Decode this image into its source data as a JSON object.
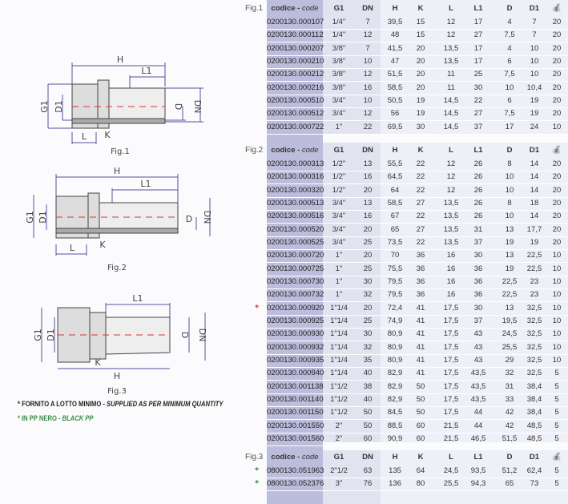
{
  "columns": [
    "codice - code",
    "G1",
    "DN",
    "H",
    "K",
    "L",
    "L1",
    "D",
    "D1",
    "bag-icon"
  ],
  "colors": {
    "code_col": "#bcbcdc",
    "mid_col": "#e2e3f1",
    "light_col": "#eff1f8",
    "red_star": "#d83a3a",
    "green_star": "#3d8a4a",
    "dim_line": "#5a4f9a"
  },
  "tables": [
    {
      "fig": "Fig.1",
      "header_code": "codice",
      "header_code_en": "code",
      "rows": [
        [
          "0200130.000107",
          "1/4\"",
          "7",
          "39,5",
          "15",
          "12",
          "17",
          "4",
          "7",
          "20"
        ],
        [
          "0200130.000112",
          "1/4\"",
          "12",
          "48",
          "15",
          "12",
          "27",
          "7,5",
          "7",
          "20"
        ],
        [
          "0200130.000207",
          "3/8\"",
          "7",
          "41,5",
          "20",
          "13,5",
          "17",
          "4",
          "10",
          "20"
        ],
        [
          "0200130.000210",
          "3/8\"",
          "10",
          "47",
          "20",
          "13,5",
          "17",
          "6",
          "10",
          "20"
        ],
        [
          "0200130.000212",
          "3/8\"",
          "12",
          "51,5",
          "20",
          "11",
          "25",
          "7,5",
          "10",
          "20"
        ],
        [
          "0200130.000216",
          "3/8\"",
          "16",
          "58,5",
          "20",
          "11",
          "30",
          "10",
          "10,4",
          "20"
        ],
        [
          "0200130.000510",
          "3/4\"",
          "10",
          "50,5",
          "19",
          "14,5",
          "22",
          "6",
          "19",
          "20"
        ],
        [
          "0200130.000512",
          "3/4\"",
          "12",
          "56",
          "19",
          "14,5",
          "27",
          "7,5",
          "19",
          "20"
        ],
        [
          "0200130.000722",
          "1\"",
          "22",
          "69,5",
          "30",
          "14,5",
          "37",
          "17",
          "24",
          "10"
        ]
      ]
    },
    {
      "fig": "Fig.2",
      "header_code": "codice",
      "header_code_en": "code",
      "rows": [
        [
          "0200130.000313",
          "1/2\"",
          "13",
          "55,5",
          "22",
          "12",
          "26",
          "8",
          "14",
          "20"
        ],
        [
          "0200130.000316",
          "1/2\"",
          "16",
          "64,5",
          "22",
          "12",
          "26",
          "10",
          "14",
          "20"
        ],
        [
          "0200130.000320",
          "1/2\"",
          "20",
          "64",
          "22",
          "12",
          "26",
          "10",
          "14",
          "20"
        ],
        [
          "0200130.000513",
          "3/4\"",
          "13",
          "58,5",
          "27",
          "13,5",
          "26",
          "8",
          "18",
          "20"
        ],
        [
          "0200130.000516",
          "3/4\"",
          "16",
          "67",
          "22",
          "13,5",
          "26",
          "10",
          "14",
          "20"
        ],
        [
          "0200130.000520",
          "3/4\"",
          "20",
          "65",
          "27",
          "13,5",
          "31",
          "13",
          "17,7",
          "20"
        ],
        [
          "0200130.000525",
          "3/4\"",
          "25",
          "73,5",
          "22",
          "13,5",
          "37",
          "19",
          "19",
          "20"
        ],
        [
          "0200130.000720",
          "1\"",
          "20",
          "70",
          "36",
          "16",
          "30",
          "13",
          "22,5",
          "10"
        ],
        [
          "0200130.000725",
          "1\"",
          "25",
          "75,5",
          "36",
          "16",
          "36",
          "19",
          "22,5",
          "10"
        ],
        [
          "0200130.000730",
          "1\"",
          "30",
          "79,5",
          "36",
          "16",
          "36",
          "22,5",
          "23",
          "10"
        ],
        [
          "0200130.000732",
          "1\"",
          "32",
          "79,5",
          "36",
          "16",
          "36",
          "22,5",
          "23",
          "10"
        ],
        [
          "0200130.000920",
          "1\"1/4",
          "20",
          "72,4",
          "41",
          "17,5",
          "30",
          "13",
          "32,5",
          "10",
          "red"
        ],
        [
          "0200130.000925",
          "1\"1/4",
          "25",
          "74,9",
          "41",
          "17,5",
          "37",
          "19,5",
          "32,5",
          "10"
        ],
        [
          "0200130.000930",
          "1\"1/4",
          "30",
          "80,9",
          "41",
          "17,5",
          "43",
          "24,5",
          "32,5",
          "10"
        ],
        [
          "0200130.000932",
          "1\"1/4",
          "32",
          "80,9",
          "41",
          "17,5",
          "43",
          "25,5",
          "32,5",
          "10"
        ],
        [
          "0200130.000935",
          "1\"1/4",
          "35",
          "80,9",
          "41",
          "17,5",
          "43",
          "29",
          "32,5",
          "10"
        ],
        [
          "0200130.000940",
          "1\"1/4",
          "40",
          "82,9",
          "41",
          "17,5",
          "43,5",
          "32",
          "32,5",
          "5"
        ],
        [
          "0200130.001138",
          "1\"1/2",
          "38",
          "82,9",
          "50",
          "17,5",
          "43,5",
          "31",
          "38,4",
          "5"
        ],
        [
          "0200130.001140",
          "1\"1/2",
          "40",
          "82,9",
          "50",
          "17,5",
          "43,5",
          "33",
          "38,4",
          "5"
        ],
        [
          "0200130.001150",
          "1\"1/2",
          "50",
          "84,5",
          "50",
          "17,5",
          "44",
          "42",
          "38,4",
          "5"
        ],
        [
          "0200130.001550",
          "2\"",
          "50",
          "88,5",
          "60",
          "21,5",
          "44",
          "42",
          "48,5",
          "5"
        ],
        [
          "0200130.001560",
          "2\"",
          "60",
          "90,9",
          "60",
          "21,5",
          "46,5",
          "51,5",
          "48,5",
          "5"
        ]
      ]
    },
    {
      "fig": "Fig.3",
      "header_code": "codice",
      "header_code_en": "code",
      "rows": [
        [
          "0800130.051963",
          "2\"1/2",
          "63",
          "135",
          "64",
          "24,5",
          "93,5",
          "51,2",
          "62,4",
          "5",
          "green"
        ],
        [
          "0800130.052376",
          "3\"",
          "76",
          "136",
          "80",
          "25,5",
          "94,3",
          "65",
          "73",
          "5",
          "green"
        ]
      ]
    }
  ],
  "drawings": {
    "fig1": {
      "caption": "Fig.1",
      "labels": {
        "H": "H",
        "L1": "L1",
        "G1": "G1",
        "D1": "D1",
        "D": "D",
        "DN": "DN",
        "L": "L",
        "K": "K"
      }
    },
    "fig2": {
      "caption": "Fig.2",
      "labels": {
        "H": "H",
        "L1": "L1",
        "G1": "G1",
        "D1": "D1",
        "D": "D",
        "DN": "DN",
        "L": "L",
        "K": "K"
      }
    },
    "fig3": {
      "caption": "Fig.3",
      "labels": {
        "H": "H",
        "L1": "L1",
        "G1": "G1",
        "D1": "D1",
        "D": "D",
        "DN": "DN",
        "K": "K"
      }
    }
  },
  "notes": {
    "star": "*",
    "min_qty_it": "FORNITO A LOTTO MINIMO - ",
    "min_qty_en": "SUPPLIED AS PER MINIMUM QUANTITY",
    "black_it": "IN PP NERO - ",
    "black_en": "BLACK PP"
  }
}
